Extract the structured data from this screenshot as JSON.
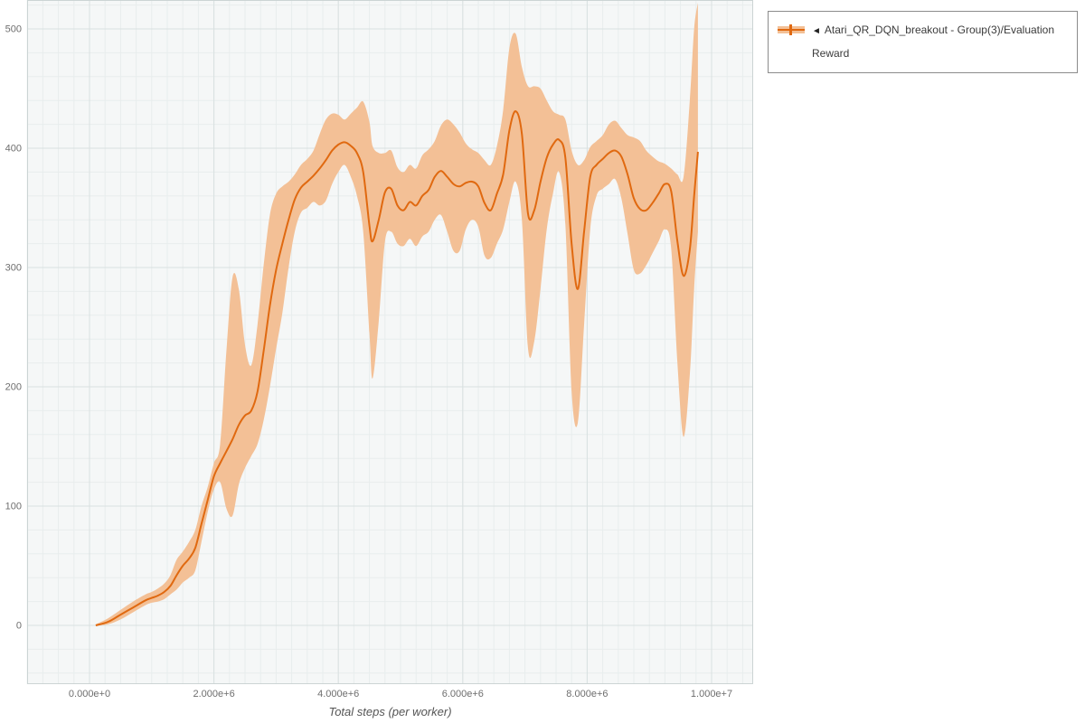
{
  "colors": {
    "line": "#e06910",
    "band": "#f3c096",
    "plot_bg": "#f5f7f7",
    "grid_minor": "#e8eded",
    "grid_major": "#d9e0e0",
    "plot_border": "#ccd4d4",
    "axis_text": "#6e6e6e",
    "legend_border": "#8c8c8c"
  },
  "legend": {
    "toggle_icon": "◄",
    "label": "Atari_QR_DQN_breakout - Group(3)/Evaluation Reward"
  },
  "axes": {
    "x_title": "Total steps (per worker)",
    "x_ticks": [
      {
        "value_millions": 0,
        "label": "0.000e+0"
      },
      {
        "value_millions": 2,
        "label": "2.000e+6"
      },
      {
        "value_millions": 4,
        "label": "4.000e+6"
      },
      {
        "value_millions": 6,
        "label": "6.000e+6"
      },
      {
        "value_millions": 8,
        "label": "8.000e+6"
      },
      {
        "value_millions": 10,
        "label": "1.000e+7"
      }
    ],
    "y_ticks": [
      {
        "value": 0,
        "label": "0"
      },
      {
        "value": 100,
        "label": "100"
      },
      {
        "value": 200,
        "label": "200"
      },
      {
        "value": 300,
        "label": "300"
      },
      {
        "value": 400,
        "label": "400"
      },
      {
        "value": 500,
        "label": "500"
      }
    ]
  },
  "chart_data": {
    "type": "line",
    "title": "",
    "xlabel": "Total steps (per worker)",
    "ylabel": "",
    "x_unit": "steps, stored in millions (×1e6)",
    "xlim_millions": [
      0,
      10
    ],
    "ylim": [
      0,
      500
    ],
    "grid": true,
    "legend_position": "top-right",
    "series": [
      {
        "name": "Atari_QR_DQN_breakout - Group(3)/Evaluation Reward",
        "has_band": true,
        "x_millions": [
          0.1,
          0.3,
          0.5,
          0.7,
          0.9,
          1.0,
          1.1,
          1.2,
          1.3,
          1.4,
          1.5,
          1.6,
          1.7,
          1.8,
          1.9,
          2.0,
          2.1,
          2.2,
          2.3,
          2.4,
          2.5,
          2.6,
          2.7,
          2.8,
          2.9,
          3.0,
          3.1,
          3.2,
          3.3,
          3.4,
          3.5,
          3.6,
          3.7,
          3.8,
          3.9,
          4.0,
          4.1,
          4.2,
          4.3,
          4.4,
          4.5,
          4.55,
          4.65,
          4.75,
          4.85,
          4.95,
          5.05,
          5.15,
          5.25,
          5.35,
          5.45,
          5.55,
          5.65,
          5.75,
          5.85,
          5.95,
          6.05,
          6.15,
          6.25,
          6.35,
          6.45,
          6.55,
          6.65,
          6.75,
          6.85,
          6.95,
          7.05,
          7.15,
          7.25,
          7.35,
          7.45,
          7.55,
          7.65,
          7.75,
          7.85,
          7.95,
          8.05,
          8.15,
          8.25,
          8.35,
          8.45,
          8.55,
          8.65,
          8.75,
          8.85,
          8.95,
          9.05,
          9.15,
          9.25,
          9.35,
          9.45,
          9.55,
          9.65,
          9.72,
          9.78
        ],
        "mean": [
          0,
          3,
          9,
          15,
          21,
          23,
          25,
          28,
          33,
          42,
          50,
          56,
          65,
          85,
          105,
          125,
          136,
          146,
          156,
          168,
          176,
          180,
          196,
          230,
          268,
          298,
          320,
          340,
          357,
          367,
          372,
          377,
          383,
          390,
          398,
          403,
          405,
          402,
          396,
          380,
          335,
          322,
          340,
          363,
          366,
          352,
          348,
          355,
          352,
          360,
          365,
          376,
          381,
          376,
          370,
          368,
          371,
          372,
          368,
          354,
          348,
          362,
          378,
          415,
          431,
          412,
          345,
          348,
          372,
          392,
          403,
          407,
          392,
          320,
          282,
          330,
          376,
          386,
          391,
          396,
          398,
          393,
          378,
          358,
          349,
          348,
          354,
          362,
          370,
          364,
          322,
          293,
          315,
          360,
          397
        ],
        "lower": [
          0,
          1,
          5,
          11,
          17,
          19,
          20,
          22,
          26,
          30,
          36,
          40,
          46,
          70,
          95,
          114,
          120,
          98,
          92,
          118,
          132,
          142,
          152,
          172,
          200,
          232,
          262,
          300,
          330,
          346,
          350,
          355,
          352,
          356,
          370,
          380,
          386,
          376,
          360,
          330,
          245,
          207,
          255,
          322,
          330,
          320,
          318,
          324,
          318,
          326,
          330,
          340,
          344,
          330,
          314,
          314,
          332,
          340,
          334,
          310,
          308,
          320,
          332,
          355,
          372,
          340,
          232,
          238,
          282,
          332,
          362,
          380,
          336,
          196,
          170,
          252,
          332,
          360,
          366,
          370,
          374,
          358,
          328,
          298,
          295,
          302,
          312,
          322,
          332,
          316,
          220,
          158,
          210,
          282,
          330
        ],
        "upper": [
          1,
          6,
          13,
          20,
          26,
          28,
          31,
          35,
          42,
          55,
          62,
          70,
          80,
          100,
          116,
          136,
          152,
          230,
          292,
          282,
          235,
          218,
          252,
          302,
          344,
          362,
          368,
          372,
          378,
          386,
          391,
          398,
          412,
          424,
          429,
          428,
          424,
          429,
          434,
          439,
          422,
          402,
          396,
          396,
          398,
          384,
          380,
          386,
          383,
          394,
          399,
          406,
          419,
          424,
          420,
          413,
          404,
          399,
          396,
          390,
          386,
          402,
          432,
          484,
          496,
          468,
          452,
          452,
          450,
          440,
          431,
          428,
          424,
          398,
          386,
          390,
          401,
          406,
          411,
          420,
          423,
          417,
          411,
          409,
          406,
          398,
          393,
          389,
          387,
          383,
          378,
          376,
          440,
          500,
          522
        ]
      }
    ]
  }
}
